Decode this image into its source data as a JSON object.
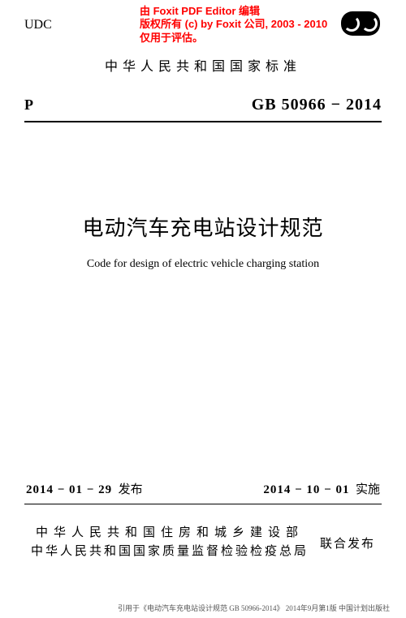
{
  "watermark": {
    "line1": "由 Foxit PDF Editor 编辑",
    "line2": "版权所有 (c) by Foxit 公司, 2003 - 2010",
    "line3": "仅用于评估。"
  },
  "header": {
    "udc": "UDC",
    "national_std": "中华人民共和国国家标准",
    "p_label": "P",
    "gb_code": "GB 50966 − 2014"
  },
  "title": {
    "cn": "电动汽车充电站设计规范",
    "en": "Code for design of electric vehicle charging station"
  },
  "dates": {
    "publish_date": "2014 − 01 − 29",
    "publish_label": "发布",
    "effective_date": "2014 − 10 − 01",
    "effective_label": "实施"
  },
  "issuers": {
    "line1": "中华人民共和国住房和城乡建设部",
    "line2": "中华人民共和国国家质量监督检验检疫总局",
    "joint": "联合发布"
  },
  "citation": "引用于《电动汽车充电站设计规范 GB 50966-2014》 2014年9月第1版 中国计划出版社"
}
